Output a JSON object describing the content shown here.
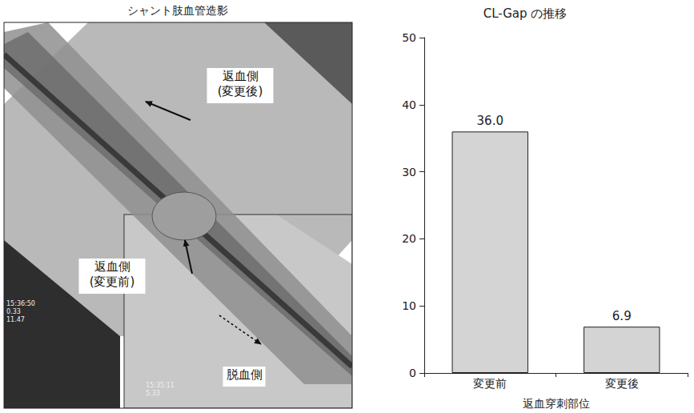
{
  "image_panel": {
    "title": "シャント肢血管造影",
    "labels": [
      {
        "lines": [
          "返血側",
          "(変更後)"
        ]
      },
      {
        "lines": [
          "返血側",
          "(変更前)"
        ]
      },
      {
        "lines": [
          "脱血側"
        ]
      }
    ],
    "stamps": [
      [
        "15:36:50",
        "0.33",
        "11.47"
      ],
      [
        "15:35:11",
        "5.33"
      ]
    ]
  },
  "chart_data": {
    "type": "bar",
    "title": "CL-Gap の推移",
    "x_label": "返血穿刺部位",
    "categories": [
      "変更前",
      "変更後"
    ],
    "values": [
      36.0,
      6.9
    ],
    "value_labels": [
      "36.0",
      "6.9"
    ],
    "color": "#d4d4d4",
    "ylim": [
      0,
      50
    ],
    "yticks": [
      0,
      10,
      20,
      30,
      40,
      50
    ],
    "grid": false,
    "data_labels": true
  }
}
